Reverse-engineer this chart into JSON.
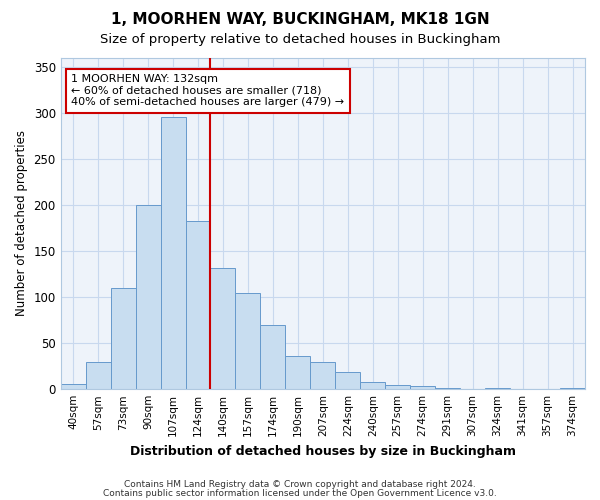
{
  "title_line1": "1, MOORHEN WAY, BUCKINGHAM, MK18 1GN",
  "title_line2": "Size of property relative to detached houses in Buckingham",
  "xlabel": "Distribution of detached houses by size in Buckingham",
  "ylabel": "Number of detached properties",
  "categories": [
    "40sqm",
    "57sqm",
    "73sqm",
    "90sqm",
    "107sqm",
    "124sqm",
    "140sqm",
    "157sqm",
    "174sqm",
    "190sqm",
    "207sqm",
    "224sqm",
    "240sqm",
    "257sqm",
    "274sqm",
    "291sqm",
    "307sqm",
    "324sqm",
    "341sqm",
    "357sqm",
    "374sqm"
  ],
  "values": [
    6,
    30,
    110,
    200,
    295,
    182,
    132,
    104,
    70,
    36,
    29,
    19,
    8,
    4,
    3,
    1,
    0,
    1,
    0,
    0,
    1
  ],
  "bar_color": "#c8ddf0",
  "bar_edge_color": "#6699cc",
  "vline_color": "#cc0000",
  "annotation_line1": "1 MOORHEN WAY: 132sqm",
  "annotation_line2": "← 60% of detached houses are smaller (718)",
  "annotation_line3": "40% of semi-detached houses are larger (479) →",
  "annotation_box_facecolor": "#ffffff",
  "annotation_box_edgecolor": "#cc0000",
  "grid_color": "#c8d8ee",
  "background_color": "#ffffff",
  "plot_bg_color": "#eef3fa",
  "footer_line1": "Contains HM Land Registry data © Crown copyright and database right 2024.",
  "footer_line2": "Contains public sector information licensed under the Open Government Licence v3.0.",
  "ylim": [
    0,
    360
  ],
  "yticks": [
    0,
    50,
    100,
    150,
    200,
    250,
    300,
    350
  ]
}
